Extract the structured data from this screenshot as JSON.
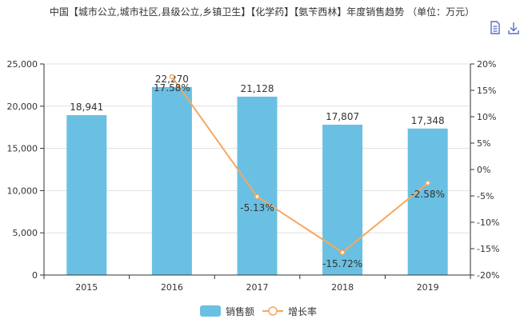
{
  "title": "中国【城市公立,城市社区,县级公立,乡镇卫生】【化学药】【氨苄西林】年度销售趋势 （单位：万元）",
  "toolbar": {
    "data_view_icon": "data-view-icon",
    "download_icon": "download-icon"
  },
  "colors": {
    "bar": "#6ac0e2",
    "line": "#f5a861",
    "axis": "#333333",
    "grid": "#e0e0e0"
  },
  "chart_data": {
    "type": "bar",
    "categories": [
      "2015",
      "2016",
      "2017",
      "2018",
      "2019"
    ],
    "series": [
      {
        "name": "销售额",
        "type": "bar",
        "axis": "left",
        "values": [
          18941,
          22270,
          21128,
          17807,
          17348
        ],
        "labels": [
          "18,941",
          "22,270",
          "21,128",
          "17,807",
          "17,348"
        ]
      },
      {
        "name": "增长率",
        "type": "line",
        "axis": "right",
        "values": [
          17.58,
          -5.13,
          -15.72,
          -2.58
        ],
        "x": [
          "2016",
          "2017",
          "2018",
          "2019"
        ],
        "labels": [
          "17.58%",
          "-5.13%",
          "-15.72%",
          "-2.58%"
        ]
      }
    ],
    "y_left": {
      "min": 0,
      "max": 25000,
      "ticks": [
        0,
        5000,
        10000,
        15000,
        20000,
        25000
      ],
      "tick_labels": [
        "0",
        "5,000",
        "10,000",
        "15,000",
        "20,000",
        "25,000"
      ]
    },
    "y_right": {
      "min": -20,
      "max": 20,
      "ticks": [
        -20,
        -15,
        -10,
        -5,
        0,
        5,
        10,
        15,
        20
      ],
      "tick_labels": [
        "-20%",
        "-15%",
        "-10%",
        "-5%",
        "0%",
        "5%",
        "10%",
        "15%",
        "20%"
      ]
    },
    "grid": true,
    "legend_position": "bottom-center"
  }
}
